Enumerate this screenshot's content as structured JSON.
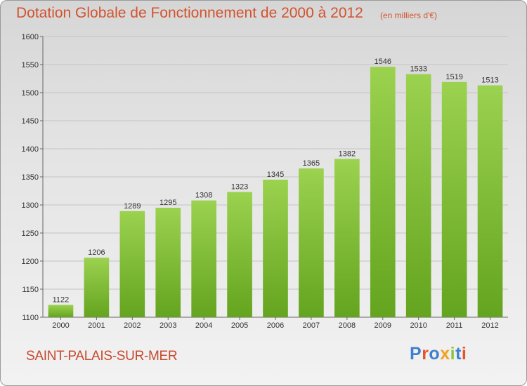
{
  "title": "Dotation Globale de Fonctionnement de 2000 à 2012",
  "subtitle": "(en milliers d'€)",
  "city": "SAINT-PALAIS-SUR-MER",
  "logo": {
    "text": "Proxiti",
    "letter_colors": [
      "#3f7fd0",
      "#e5542b",
      "#3f7fd0",
      "#f2a21e",
      "#8cc63f",
      "#3f7fd0",
      "#e5542b"
    ]
  },
  "colors": {
    "bar_top": "#9bd24f",
    "bar_bottom": "#64a41e",
    "title": "#d2532f",
    "city": "#c74a2e"
  },
  "chart_data": {
    "type": "bar",
    "categories": [
      "2000",
      "2001",
      "2002",
      "2003",
      "2004",
      "2005",
      "2006",
      "2007",
      "2008",
      "2009",
      "2010",
      "2011",
      "2012"
    ],
    "values": [
      1122,
      1206,
      1289,
      1295,
      1308,
      1323,
      1345,
      1365,
      1382,
      1546,
      1533,
      1519,
      1513
    ],
    "yticks": [
      "1100",
      "1150",
      "1200",
      "1250",
      "1300",
      "1350",
      "1400",
      "1450",
      "1500",
      "1550",
      "1600"
    ],
    "ylim": [
      1100,
      1600
    ],
    "grid": true
  }
}
